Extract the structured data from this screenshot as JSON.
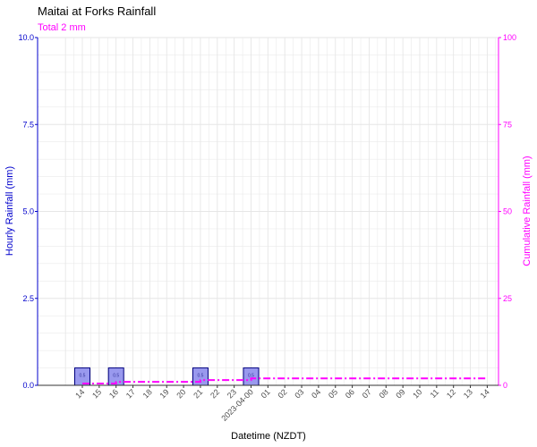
{
  "chart_data": {
    "type": "bar",
    "title": "Maitai at Forks Rainfall",
    "subtitle": "Total 2 mm",
    "xlabel": "Datetime (NZDT)",
    "ylabel": "Hourly Rainfall (mm)",
    "y2label": "Cumulative Rainfall (mm)",
    "ylim": [
      0,
      10
    ],
    "y2lim": [
      0,
      100
    ],
    "yticks": [
      "0.0",
      "2.5",
      "5.0",
      "7.5",
      "10.0"
    ],
    "y2ticks": [
      "0",
      "25",
      "50",
      "75",
      "100"
    ],
    "x_tick_labels": [
      "14",
      "15",
      "16",
      "17",
      "18",
      "19",
      "20",
      "21",
      "22",
      "23",
      "2023-04-00",
      "01",
      "02",
      "03",
      "04",
      "05",
      "06",
      "07",
      "08",
      "09",
      "10",
      "11",
      "12",
      "13",
      "14"
    ],
    "bars": [
      {
        "hour_index": 0,
        "value": 0.5,
        "label": "0.5"
      },
      {
        "hour_index": 2,
        "value": 0.5,
        "label": "0.5"
      },
      {
        "hour_index": 7,
        "value": 0.5,
        "label": "0.5"
      },
      {
        "hour_index": 10,
        "value": 0.5,
        "label": "0.5"
      }
    ],
    "cumulative": {
      "hour_index": [
        0,
        2,
        7,
        10,
        24
      ],
      "values": [
        0.5,
        1.0,
        1.5,
        2.0,
        2.0
      ]
    },
    "grid": true,
    "colors": {
      "bar_fill": "#9999ee",
      "bar_edge": "#000080",
      "primary_axis": "#0000cc",
      "secondary_axis": "#ff00ff",
      "cumulative_line": "#ff00ff",
      "grid": "#e6e6e6"
    }
  }
}
